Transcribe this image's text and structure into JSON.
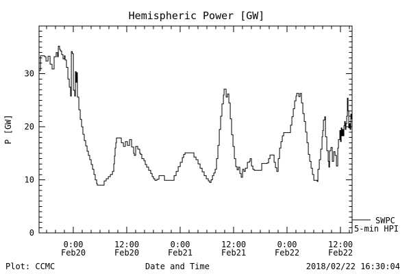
{
  "title": "Hemispheric Power [GW]",
  "footer": {
    "left": "Plot: CCMC",
    "right": "2018/02/22 16:30:04"
  },
  "legend": {
    "line1": "SWPC",
    "line2": "5-min HPI",
    "color": "#000000"
  },
  "colors": {
    "background": "#ffffff",
    "axis": "#000000",
    "line": "#000000",
    "text": "#000000"
  },
  "chart_data": {
    "type": "line",
    "title": "Hemispheric Power [GW]",
    "xlabel": "Date and Time",
    "ylabel": "P [GW]",
    "ylim": [
      0,
      39
    ],
    "xlim_hours": [
      -7.7,
      62.6
    ],
    "x_reference": "hours from Feb20 0:00",
    "grid": "off",
    "legend_position": "right-outside-bottom",
    "y_major_ticks": [
      0,
      10,
      20,
      30
    ],
    "y_minor_step": 1,
    "x_minor_step_hours": 2,
    "x_major_ticks": [
      {
        "t": 0,
        "line1": "0:00",
        "line2": "Feb20"
      },
      {
        "t": 12,
        "line1": "12:00",
        "line2": "Feb20"
      },
      {
        "t": 24,
        "line1": "0:00",
        "line2": "Feb21"
      },
      {
        "t": 36,
        "line1": "12:00",
        "line2": "Feb21"
      },
      {
        "t": 48,
        "line1": "0:00",
        "line2": "Feb22"
      },
      {
        "t": 60,
        "line1": "12:00",
        "line2": "Feb22"
      }
    ],
    "series": [
      {
        "name": "SWPC 5-min HPI",
        "step": true,
        "points": [
          [
            -7.69,
            30.6
          ],
          [
            -7.38,
            33.4
          ],
          [
            -6.46,
            33.2
          ],
          [
            -6.15,
            32.4
          ],
          [
            -5.69,
            33.3
          ],
          [
            -5.23,
            31.8
          ],
          [
            -4.77,
            30.9
          ],
          [
            -4.31,
            33.2
          ],
          [
            -3.85,
            34.0
          ],
          [
            -3.54,
            33.2
          ],
          [
            -3.38,
            35.2
          ],
          [
            -3.08,
            34.6
          ],
          [
            -2.92,
            34.3
          ],
          [
            -2.62,
            33.6
          ],
          [
            -2.31,
            32.8
          ],
          [
            -2.0,
            33.4
          ],
          [
            -1.85,
            32.6
          ],
          [
            -1.54,
            31.2
          ],
          [
            -1.23,
            29.0
          ],
          [
            -0.92,
            27.5
          ],
          [
            -0.62,
            25.8
          ],
          [
            -0.46,
            34.2
          ],
          [
            -0.23,
            33.8
          ],
          [
            0.0,
            26.9
          ],
          [
            0.31,
            25.8
          ],
          [
            0.46,
            30.4
          ],
          [
            0.62,
            28.4
          ],
          [
            0.77,
            30.2
          ],
          [
            0.92,
            25.6
          ],
          [
            1.23,
            23.2
          ],
          [
            1.54,
            21.4
          ],
          [
            1.85,
            20.0
          ],
          [
            2.15,
            18.6
          ],
          [
            2.46,
            17.4
          ],
          [
            2.77,
            16.4
          ],
          [
            3.08,
            15.4
          ],
          [
            3.38,
            14.6
          ],
          [
            3.69,
            13.8
          ],
          [
            4.0,
            12.9
          ],
          [
            4.31,
            12.0
          ],
          [
            4.62,
            11.0
          ],
          [
            4.92,
            10.0
          ],
          [
            5.23,
            9.3
          ],
          [
            5.38,
            9.0
          ],
          [
            6.77,
            9.0
          ],
          [
            6.92,
            9.8
          ],
          [
            7.38,
            10.2
          ],
          [
            7.85,
            10.6
          ],
          [
            8.31,
            11.0
          ],
          [
            8.77,
            11.6
          ],
          [
            9.08,
            13.0
          ],
          [
            9.23,
            14.5
          ],
          [
            9.38,
            16.0
          ],
          [
            9.54,
            17.0
          ],
          [
            9.69,
            17.9
          ],
          [
            10.46,
            17.9
          ],
          [
            10.77,
            17.0
          ],
          [
            11.23,
            16.3
          ],
          [
            11.69,
            17.2
          ],
          [
            12.15,
            16.5
          ],
          [
            12.62,
            17.6
          ],
          [
            13.08,
            16.2
          ],
          [
            13.54,
            15.0
          ],
          [
            13.69,
            14.6
          ],
          [
            14.0,
            16.3
          ],
          [
            14.46,
            15.8
          ],
          [
            14.92,
            15.0
          ],
          [
            15.08,
            14.8
          ],
          [
            15.38,
            14.0
          ],
          [
            15.85,
            13.6
          ],
          [
            16.15,
            12.9
          ],
          [
            16.46,
            12.4
          ],
          [
            16.92,
            11.8
          ],
          [
            17.38,
            11.2
          ],
          [
            17.69,
            10.6
          ],
          [
            18.0,
            10.2
          ],
          [
            18.31,
            9.9
          ],
          [
            18.77,
            10.1
          ],
          [
            19.23,
            10.8
          ],
          [
            20.15,
            10.8
          ],
          [
            20.46,
            9.9
          ],
          [
            22.31,
            9.9
          ],
          [
            22.62,
            10.8
          ],
          [
            23.08,
            11.6
          ],
          [
            23.54,
            12.5
          ],
          [
            24.0,
            13.3
          ],
          [
            24.46,
            14.2
          ],
          [
            24.77,
            14.8
          ],
          [
            25.08,
            15.1
          ],
          [
            26.77,
            15.1
          ],
          [
            27.08,
            14.3
          ],
          [
            27.54,
            13.8
          ],
          [
            28.0,
            13.0
          ],
          [
            28.46,
            12.2
          ],
          [
            28.92,
            11.5
          ],
          [
            29.38,
            10.8
          ],
          [
            29.85,
            10.2
          ],
          [
            30.31,
            9.8
          ],
          [
            30.62,
            9.5
          ],
          [
            30.92,
            10.0
          ],
          [
            31.23,
            10.8
          ],
          [
            31.54,
            11.3
          ],
          [
            31.85,
            12.0
          ],
          [
            32.15,
            14.0
          ],
          [
            32.46,
            16.5
          ],
          [
            32.77,
            19.5
          ],
          [
            33.08,
            22.0
          ],
          [
            33.38,
            24.3
          ],
          [
            33.69,
            26.0
          ],
          [
            33.85,
            27.1
          ],
          [
            34.31,
            25.6
          ],
          [
            34.62,
            26.2
          ],
          [
            34.92,
            24.5
          ],
          [
            35.23,
            21.5
          ],
          [
            35.54,
            18.5
          ],
          [
            35.85,
            16.3
          ],
          [
            36.15,
            14.0
          ],
          [
            36.46,
            12.5
          ],
          [
            36.77,
            11.9
          ],
          [
            37.08,
            12.4
          ],
          [
            37.38,
            11.2
          ],
          [
            37.69,
            10.5
          ],
          [
            38.0,
            12.0
          ],
          [
            38.31,
            11.6
          ],
          [
            38.62,
            12.2
          ],
          [
            39.08,
            13.3
          ],
          [
            39.54,
            13.5
          ],
          [
            39.69,
            14.0
          ],
          [
            40.0,
            12.6
          ],
          [
            40.31,
            12.0
          ],
          [
            40.62,
            11.8
          ],
          [
            42.0,
            11.8
          ],
          [
            42.31,
            13.1
          ],
          [
            43.54,
            13.2
          ],
          [
            43.85,
            14.0
          ],
          [
            44.15,
            14.7
          ],
          [
            44.77,
            14.7
          ],
          [
            45.08,
            13.3
          ],
          [
            45.38,
            12.3
          ],
          [
            45.69,
            11.6
          ],
          [
            46.0,
            14.0
          ],
          [
            46.31,
            16.0
          ],
          [
            46.62,
            17.2
          ],
          [
            46.92,
            18.3
          ],
          [
            47.23,
            18.9
          ],
          [
            48.46,
            18.9
          ],
          [
            48.77,
            20.3
          ],
          [
            49.08,
            21.9
          ],
          [
            49.38,
            23.4
          ],
          [
            49.69,
            24.9
          ],
          [
            50.0,
            25.8
          ],
          [
            50.15,
            26.3
          ],
          [
            50.62,
            25.7
          ],
          [
            50.92,
            26.3
          ],
          [
            51.23,
            24.5
          ],
          [
            51.54,
            22.5
          ],
          [
            51.85,
            21.0
          ],
          [
            52.15,
            19.0
          ],
          [
            52.46,
            17.0
          ],
          [
            52.77,
            14.8
          ],
          [
            53.08,
            13.5
          ],
          [
            53.38,
            12.2
          ],
          [
            53.69,
            11.0
          ],
          [
            54.0,
            9.9
          ],
          [
            54.77,
            9.7
          ],
          [
            54.92,
            12.0
          ],
          [
            55.23,
            13.8
          ],
          [
            55.54,
            15.8
          ],
          [
            55.85,
            18.1
          ],
          [
            56.0,
            19.3
          ],
          [
            56.15,
            21.3
          ],
          [
            56.46,
            21.9
          ],
          [
            56.62,
            18.1
          ],
          [
            56.92,
            15.5
          ],
          [
            57.23,
            13.5
          ],
          [
            57.38,
            12.4
          ],
          [
            57.54,
            15.5
          ],
          [
            57.85,
            16.1
          ],
          [
            58.15,
            13.5
          ],
          [
            58.46,
            15.3
          ],
          [
            58.77,
            14.6
          ],
          [
            59.08,
            12.6
          ],
          [
            59.38,
            16.0
          ],
          [
            59.54,
            17.6
          ],
          [
            59.85,
            19.3
          ],
          [
            60.0,
            17.2
          ],
          [
            60.15,
            19.8
          ],
          [
            60.31,
            18.3
          ],
          [
            60.46,
            19.5
          ],
          [
            60.62,
            18.3
          ],
          [
            60.77,
            20.2
          ],
          [
            60.92,
            21.0
          ],
          [
            61.08,
            19.5
          ],
          [
            61.23,
            20.6
          ],
          [
            61.38,
            22.0
          ],
          [
            61.54,
            25.4
          ],
          [
            61.69,
            23.0
          ],
          [
            61.85,
            19.8
          ],
          [
            62.0,
            20.6
          ],
          [
            62.15,
            19.5
          ],
          [
            62.31,
            22.4
          ],
          [
            62.46,
            21.5
          ],
          [
            62.6,
            20.3
          ]
        ]
      }
    ]
  }
}
